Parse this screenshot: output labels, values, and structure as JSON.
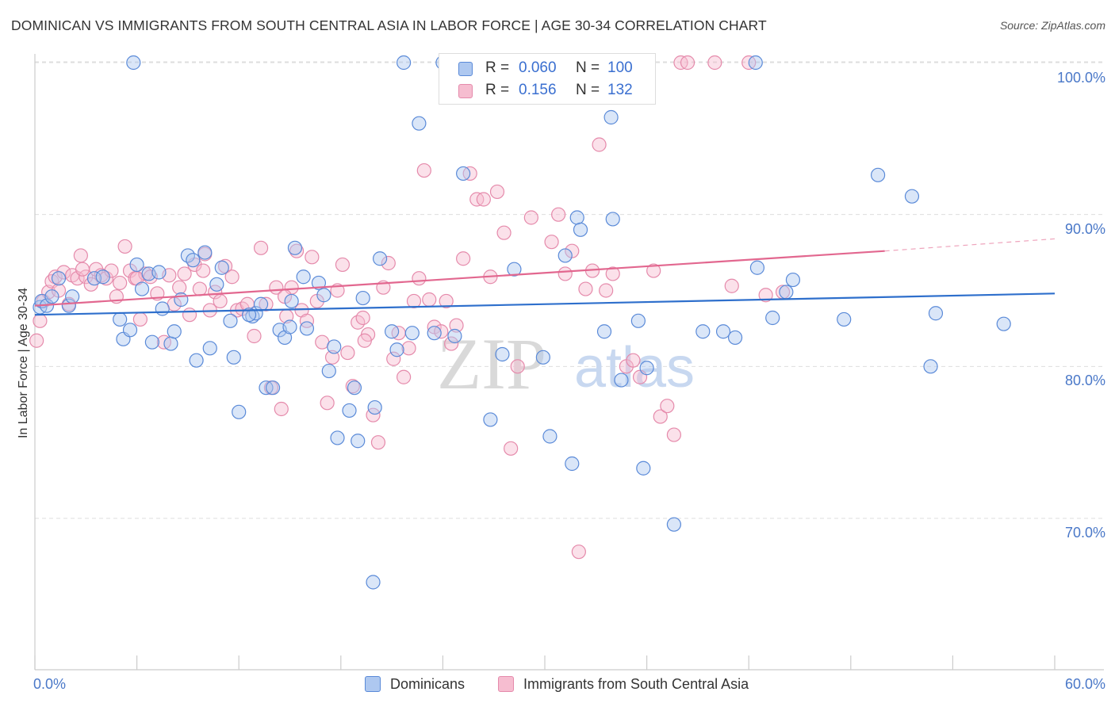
{
  "header": {
    "title": "DOMINICAN VS IMMIGRANTS FROM SOUTH CENTRAL ASIA IN LABOR FORCE | AGE 30-34 CORRELATION CHART",
    "source": "Source: ZipAtlas.com"
  },
  "legend": {
    "r_key": "R =",
    "n_key": "N =",
    "series": [
      {
        "r": "0.060",
        "n": "100"
      },
      {
        "r": "0.156",
        "n": "132"
      }
    ]
  },
  "bottom_legend": [
    "Dominicans",
    "Immigrants from South Central Asia"
  ],
  "watermark": {
    "zip": "ZIP",
    "atlas": "atlas"
  },
  "colors": {
    "blue_fill": "#aec8f0",
    "blue_stroke": "#5a8ad8",
    "blue_line": "#2e6fcc",
    "pink_fill": "#f6bdd0",
    "pink_stroke": "#e58aab",
    "pink_line": "#e2678f",
    "grid": "#dddddd",
    "tick_label": "#4a78c8"
  },
  "chart_data": {
    "type": "scatter",
    "title": "DOMINICAN VS IMMIGRANTS FROM SOUTH CENTRAL ASIA IN LABOR FORCE | AGE 30-34 CORRELATION CHART",
    "xlabel": "",
    "ylabel": "In Labor Force | Age 30-34",
    "xlim": [
      0,
      60
    ],
    "ylim": [
      60,
      102
    ],
    "x_ticks": [
      "0.0%",
      "60.0%"
    ],
    "y_ticks": [
      {
        "value": 70,
        "label": "70.0%"
      },
      {
        "value": 80,
        "label": "80.0%"
      },
      {
        "value": 90,
        "label": "90.0%"
      },
      {
        "value": 100,
        "label": "100.0%"
      }
    ],
    "grid": true,
    "legend_placement": "top-center",
    "series": [
      {
        "name": "Dominicans",
        "color": "#5a8ad8",
        "trend": {
          "x": [
            0,
            60
          ],
          "y": [
            83.4,
            84.8
          ]
        },
        "points": [
          [
            0.3,
            83.9
          ],
          [
            0.4,
            84.3
          ],
          [
            0.7,
            84.0
          ],
          [
            1.0,
            84.6
          ],
          [
            1.4,
            85.8
          ],
          [
            2.0,
            84.0
          ],
          [
            2.2,
            84.6
          ],
          [
            3.5,
            85.8
          ],
          [
            4.0,
            85.9
          ],
          [
            5.0,
            83.1
          ],
          [
            5.2,
            81.8
          ],
          [
            5.6,
            82.4
          ],
          [
            6.0,
            86.7
          ],
          [
            6.3,
            85.1
          ],
          [
            6.7,
            86.1
          ],
          [
            6.9,
            81.6
          ],
          [
            7.3,
            86.2
          ],
          [
            7.5,
            83.8
          ],
          [
            8.0,
            81.5
          ],
          [
            8.2,
            82.3
          ],
          [
            8.6,
            84.4
          ],
          [
            9.0,
            87.3
          ],
          [
            9.3,
            87.0
          ],
          [
            9.5,
            80.4
          ],
          [
            10.0,
            87.5
          ],
          [
            10.3,
            81.2
          ],
          [
            10.7,
            85.4
          ],
          [
            11.0,
            86.5
          ],
          [
            11.5,
            83.0
          ],
          [
            11.7,
            80.6
          ],
          [
            12.0,
            77.0
          ],
          [
            12.8,
            83.3
          ],
          [
            13.0,
            83.5
          ],
          [
            13.3,
            84.1
          ],
          [
            13.6,
            78.6
          ],
          [
            14.0,
            78.6
          ],
          [
            14.4,
            82.4
          ],
          [
            14.7,
            81.9
          ],
          [
            15.0,
            82.6
          ],
          [
            15.3,
            87.8
          ],
          [
            15.8,
            85.9
          ],
          [
            16.0,
            82.5
          ],
          [
            16.7,
            85.5
          ],
          [
            17.0,
            84.7
          ],
          [
            17.3,
            79.7
          ],
          [
            17.6,
            81.3
          ],
          [
            17.8,
            75.3
          ],
          [
            18.5,
            77.1
          ],
          [
            18.8,
            78.6
          ],
          [
            19.0,
            75.1
          ],
          [
            19.3,
            84.5
          ],
          [
            20.0,
            77.3
          ],
          [
            20.3,
            87.1
          ],
          [
            21.0,
            82.3
          ],
          [
            21.3,
            81.1
          ],
          [
            21.7,
            100.0
          ],
          [
            22.2,
            82.2
          ],
          [
            22.6,
            96.0
          ],
          [
            23.5,
            82.2
          ],
          [
            24.0,
            100.0
          ],
          [
            24.7,
            82.0
          ],
          [
            25.2,
            92.7
          ],
          [
            26.8,
            76.5
          ],
          [
            27.5,
            80.8
          ],
          [
            28.2,
            86.4
          ],
          [
            29.9,
            80.6
          ],
          [
            30.3,
            75.4
          ],
          [
            31.2,
            87.3
          ],
          [
            31.6,
            73.6
          ],
          [
            31.9,
            89.8
          ],
          [
            32.1,
            89.0
          ],
          [
            33.5,
            82.3
          ],
          [
            33.8,
            100.0
          ],
          [
            33.9,
            96.4
          ],
          [
            34.0,
            89.7
          ],
          [
            34.5,
            79.1
          ],
          [
            35.5,
            83.0
          ],
          [
            35.8,
            73.3
          ],
          [
            36.0,
            79.9
          ],
          [
            37.6,
            69.6
          ],
          [
            39.3,
            82.3
          ],
          [
            40.5,
            82.3
          ],
          [
            41.2,
            81.9
          ],
          [
            42.4,
            100.0
          ],
          [
            42.5,
            86.5
          ],
          [
            43.4,
            83.2
          ],
          [
            44.2,
            84.9
          ],
          [
            44.6,
            85.7
          ],
          [
            47.6,
            83.1
          ],
          [
            49.6,
            92.6
          ],
          [
            51.6,
            91.2
          ],
          [
            52.7,
            80.0
          ],
          [
            53.0,
            83.5
          ],
          [
            57.0,
            82.8
          ],
          [
            19.9,
            65.8
          ],
          [
            5.8,
            100.0
          ],
          [
            15.1,
            84.3
          ],
          [
            12.6,
            83.4
          ]
        ]
      },
      {
        "name": "Immigrants from South Central Asia",
        "color": "#e58aab",
        "trend": {
          "x": [
            0,
            50
          ],
          "y": [
            84.0,
            87.6
          ]
        },
        "trend_dashed": {
          "x": [
            50,
            60
          ],
          "y": [
            87.6,
            88.4
          ]
        },
        "points": [
          [
            0.1,
            81.7
          ],
          [
            0.3,
            83.0
          ],
          [
            0.5,
            84.3
          ],
          [
            0.8,
            84.9
          ],
          [
            1.0,
            85.6
          ],
          [
            1.2,
            85.9
          ],
          [
            1.4,
            85.0
          ],
          [
            1.7,
            86.2
          ],
          [
            2.0,
            84.1
          ],
          [
            2.2,
            86.0
          ],
          [
            2.5,
            85.8
          ],
          [
            2.7,
            87.3
          ],
          [
            3.0,
            85.9
          ],
          [
            3.3,
            85.4
          ],
          [
            3.6,
            86.4
          ],
          [
            3.9,
            86.0
          ],
          [
            4.2,
            85.8
          ],
          [
            4.5,
            86.3
          ],
          [
            4.8,
            84.6
          ],
          [
            5.0,
            85.5
          ],
          [
            5.3,
            87.9
          ],
          [
            5.6,
            86.3
          ],
          [
            5.9,
            85.8
          ],
          [
            6.2,
            83.1
          ],
          [
            6.5,
            86.1
          ],
          [
            6.8,
            85.9
          ],
          [
            7.2,
            84.8
          ],
          [
            7.6,
            81.6
          ],
          [
            7.9,
            86.0
          ],
          [
            8.2,
            84.1
          ],
          [
            8.5,
            85.2
          ],
          [
            8.8,
            86.1
          ],
          [
            9.1,
            83.4
          ],
          [
            9.4,
            86.7
          ],
          [
            9.7,
            85.1
          ],
          [
            10.0,
            87.4
          ],
          [
            10.3,
            83.7
          ],
          [
            10.6,
            84.9
          ],
          [
            10.9,
            84.3
          ],
          [
            11.2,
            86.6
          ],
          [
            11.6,
            85.9
          ],
          [
            11.9,
            83.7
          ],
          [
            12.2,
            83.8
          ],
          [
            12.5,
            84.1
          ],
          [
            12.9,
            82.0
          ],
          [
            13.3,
            87.8
          ],
          [
            13.6,
            84.1
          ],
          [
            13.9,
            78.6
          ],
          [
            14.2,
            85.2
          ],
          [
            14.5,
            77.2
          ],
          [
            14.8,
            83.3
          ],
          [
            15.1,
            85.2
          ],
          [
            15.4,
            87.6
          ],
          [
            15.7,
            83.7
          ],
          [
            16.0,
            83.0
          ],
          [
            16.3,
            87.2
          ],
          [
            16.6,
            84.3
          ],
          [
            16.9,
            81.6
          ],
          [
            17.2,
            77.6
          ],
          [
            17.5,
            80.6
          ],
          [
            17.8,
            85.0
          ],
          [
            18.1,
            86.7
          ],
          [
            18.4,
            80.9
          ],
          [
            18.7,
            78.7
          ],
          [
            19.0,
            82.9
          ],
          [
            19.3,
            83.2
          ],
          [
            19.6,
            82.1
          ],
          [
            19.9,
            76.8
          ],
          [
            20.2,
            75.0
          ],
          [
            20.5,
            85.2
          ],
          [
            20.8,
            86.8
          ],
          [
            21.1,
            80.5
          ],
          [
            21.4,
            82.2
          ],
          [
            21.7,
            79.3
          ],
          [
            22.0,
            81.2
          ],
          [
            22.3,
            84.3
          ],
          [
            22.6,
            85.8
          ],
          [
            22.9,
            92.9
          ],
          [
            23.2,
            84.4
          ],
          [
            23.5,
            82.6
          ],
          [
            23.9,
            82.3
          ],
          [
            24.2,
            84.3
          ],
          [
            24.5,
            81.5
          ],
          [
            24.8,
            82.7
          ],
          [
            25.2,
            87.1
          ],
          [
            25.6,
            92.7
          ],
          [
            26.0,
            91.0
          ],
          [
            26.4,
            91.0
          ],
          [
            26.8,
            85.9
          ],
          [
            27.2,
            91.5
          ],
          [
            27.6,
            88.8
          ],
          [
            28.0,
            74.6
          ],
          [
            28.4,
            80.0
          ],
          [
            28.8,
            100.0
          ],
          [
            29.2,
            89.8
          ],
          [
            29.6,
            99.2
          ],
          [
            30.0,
            98.2
          ],
          [
            30.4,
            88.2
          ],
          [
            30.8,
            90.0
          ],
          [
            31.2,
            86.1
          ],
          [
            31.6,
            87.6
          ],
          [
            32.0,
            67.8
          ],
          [
            32.4,
            85.1
          ],
          [
            32.8,
            86.3
          ],
          [
            33.2,
            94.6
          ],
          [
            33.6,
            85.0
          ],
          [
            34.0,
            86.1
          ],
          [
            34.4,
            100.0
          ],
          [
            34.8,
            80.0
          ],
          [
            35.2,
            80.4
          ],
          [
            35.6,
            79.3
          ],
          [
            36.0,
            100.0
          ],
          [
            36.4,
            86.3
          ],
          [
            36.8,
            76.7
          ],
          [
            37.2,
            77.4
          ],
          [
            37.6,
            75.5
          ],
          [
            38.0,
            100.0
          ],
          [
            38.4,
            100.0
          ],
          [
            40.0,
            100.0
          ],
          [
            41.0,
            85.3
          ],
          [
            42.0,
            100.0
          ],
          [
            43.0,
            84.7
          ],
          [
            44.0,
            84.9
          ],
          [
            2.8,
            86.4
          ],
          [
            6.0,
            85.8
          ],
          [
            9.9,
            86.3
          ],
          [
            14.7,
            84.6
          ],
          [
            19.4,
            81.7
          ],
          [
            27.4,
            100.0
          ]
        ]
      }
    ]
  }
}
